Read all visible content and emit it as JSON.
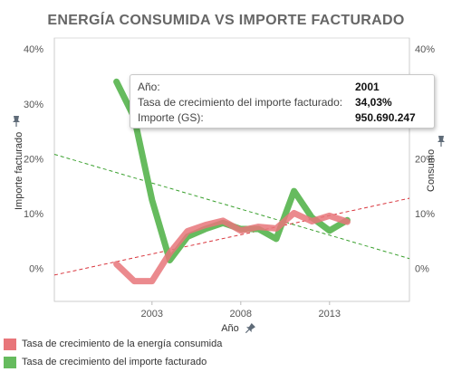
{
  "chart_data": {
    "type": "line",
    "title": "ENERGÍA CONSUMIDA VS IMPORTE FACTURADO",
    "xlabel": "Año",
    "ylabel_left": "Importe facturado",
    "ylabel_right": "Consumo",
    "xlim": [
      1997.5,
      2017.5
    ],
    "ylim": [
      -6,
      42
    ],
    "x_ticks": [
      2003,
      2008,
      2013
    ],
    "x_tick_labels": [
      "2003",
      "2008",
      "2013"
    ],
    "y_ticks": [
      0,
      10,
      20,
      30,
      40
    ],
    "y_tick_labels": [
      "0%",
      "10%",
      "20%",
      "30%",
      "40%"
    ],
    "series": [
      {
        "name": "Tasa de crecimiento de la energía consumida",
        "color": "#e8767a",
        "x": [
          2001,
          2002,
          2003,
          2004,
          2005,
          2006,
          2007,
          2008,
          2009,
          2010,
          2011,
          2012,
          2013,
          2014
        ],
        "y": [
          0.8,
          -2.3,
          -2.3,
          2.8,
          6.8,
          7.9,
          8.7,
          6.9,
          7.6,
          7.3,
          10.1,
          8.6,
          9.6,
          8.5
        ]
      },
      {
        "name": "Tasa de crecimiento del importe facturado",
        "color": "#66bb5e",
        "x": [
          2001,
          2002,
          2003,
          2004,
          2005,
          2006,
          2007,
          2008,
          2009,
          2010,
          2011,
          2012,
          2013,
          2014
        ],
        "y": [
          34.03,
          27.5,
          12.5,
          1.5,
          5.8,
          7.2,
          8.3,
          7.2,
          7.2,
          5.4,
          14.1,
          9.3,
          6.9,
          8.8
        ]
      }
    ],
    "trendlines": [
      {
        "series": "Tasa de crecimiento de la energía consumida",
        "color": "#d9363e",
        "x": [
          1997.5,
          2017.5
        ],
        "y": [
          -1.2,
          12.8
        ]
      },
      {
        "series": "Tasa de crecimiento del importe facturado",
        "color": "#3aa02e",
        "x": [
          1997.5,
          2017.5
        ],
        "y": [
          20.8,
          1.8
        ]
      }
    ],
    "grid": false,
    "legend_position": "bottom-left"
  },
  "tooltip": {
    "rows": [
      {
        "label": "Año:",
        "value": "2001"
      },
      {
        "label": "Tasa de crecimiento del importe facturado:",
        "value": "34,03%"
      },
      {
        "label": "Importe (GS):",
        "value": "950.690.247"
      }
    ]
  },
  "icons": {
    "pin": "pin-icon"
  }
}
